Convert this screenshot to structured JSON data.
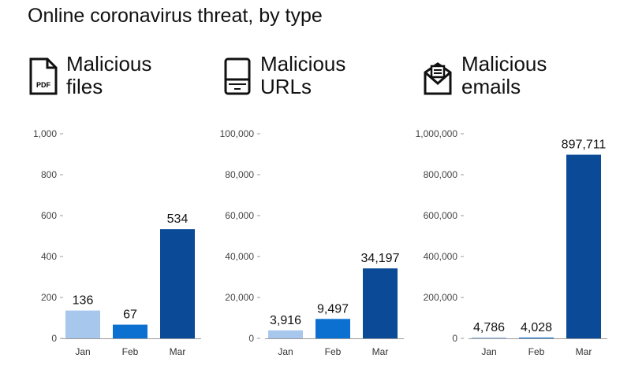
{
  "title": "Online coronavirus threat, by type",
  "colors": {
    "jan": "#a8c7ec",
    "feb": "#0b70d0",
    "mar": "#0a4a97",
    "axis": "#999999"
  },
  "chart_data": [
    {
      "type": "bar",
      "title_line1": "Malicious",
      "title_line2": "files",
      "icon": "pdf-file-icon",
      "categories": [
        "Jan",
        "Feb",
        "Mar"
      ],
      "values": [
        136,
        67,
        534
      ],
      "labels": [
        "136",
        "67",
        "534"
      ],
      "ylim": [
        0,
        1000
      ],
      "yticks": [
        0,
        200,
        400,
        600,
        800,
        1000
      ],
      "ytick_labels": [
        "0",
        "200",
        "400",
        "600",
        "800",
        "1,000"
      ]
    },
    {
      "type": "bar",
      "title_line1": "Malicious",
      "title_line2": "URLs",
      "icon": "laptop-icon",
      "categories": [
        "Jan",
        "Feb",
        "Mar"
      ],
      "values": [
        3916,
        9497,
        34197
      ],
      "labels": [
        "3,916",
        "9,497",
        "34,197"
      ],
      "ylim": [
        0,
        100000
      ],
      "yticks": [
        0,
        20000,
        40000,
        60000,
        80000,
        100000
      ],
      "ytick_labels": [
        "0",
        "20,000",
        "40,000",
        "60,000",
        "80,000",
        "100,000"
      ]
    },
    {
      "type": "bar",
      "title_line1": "Malicious",
      "title_line2": "emails",
      "icon": "envelope-icon",
      "categories": [
        "Jan",
        "Feb",
        "Mar"
      ],
      "values": [
        4786,
        4028,
        897711
      ],
      "labels": [
        "4,786",
        "4,028",
        "897,711"
      ],
      "ylim": [
        0,
        1000000
      ],
      "yticks": [
        0,
        200000,
        400000,
        600000,
        800000,
        1000000
      ],
      "ytick_labels": [
        "0",
        "200,000",
        "400,000",
        "600,000",
        "800,000",
        "1,000,000"
      ]
    }
  ]
}
